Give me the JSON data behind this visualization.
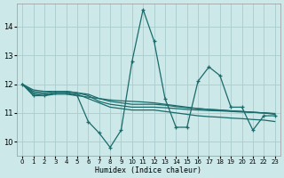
{
  "xlabel": "Humidex (Indice chaleur)",
  "background_color": "#cce8e8",
  "grid_color": "#aacccc",
  "line_color": "#1a6b6b",
  "xlim": [
    -0.5,
    23.5
  ],
  "ylim": [
    9.5,
    14.8
  ],
  "yticks": [
    10,
    11,
    12,
    13,
    14
  ],
  "xticks": [
    0,
    1,
    2,
    3,
    4,
    5,
    6,
    7,
    8,
    9,
    10,
    11,
    12,
    13,
    14,
    15,
    16,
    17,
    18,
    19,
    20,
    21,
    22,
    23
  ],
  "series_markers": [
    [
      12.0,
      11.6,
      11.6,
      11.7,
      11.7,
      11.6,
      10.7,
      10.3,
      9.8,
      10.4,
      12.8,
      14.6,
      13.5,
      11.5,
      10.5,
      10.5,
      12.1,
      12.6,
      12.3,
      11.2,
      11.2,
      10.4,
      10.9,
      10.9
    ]
  ],
  "series_lines": [
    [
      12.0,
      11.65,
      11.6,
      11.65,
      11.65,
      11.6,
      11.55,
      11.5,
      11.45,
      11.42,
      11.4,
      11.38,
      11.35,
      11.3,
      11.25,
      11.2,
      11.15,
      11.12,
      11.1,
      11.07,
      11.05,
      11.02,
      11.0,
      10.95
    ],
    [
      12.0,
      11.7,
      11.65,
      11.7,
      11.7,
      11.65,
      11.5,
      11.35,
      11.2,
      11.15,
      11.1,
      11.1,
      11.1,
      11.05,
      11.0,
      10.95,
      10.9,
      10.87,
      10.85,
      10.82,
      10.8,
      10.77,
      10.75,
      10.7
    ],
    [
      12.0,
      11.75,
      11.7,
      11.75,
      11.75,
      11.7,
      11.6,
      11.4,
      11.3,
      11.25,
      11.2,
      11.2,
      11.2,
      11.18,
      11.15,
      11.12,
      11.1,
      11.08,
      11.07,
      11.05,
      11.03,
      11.02,
      11.0,
      10.98
    ],
    [
      12.0,
      11.8,
      11.75,
      11.75,
      11.75,
      11.7,
      11.65,
      11.5,
      11.4,
      11.35,
      11.3,
      11.3,
      11.3,
      11.27,
      11.22,
      11.18,
      11.15,
      11.12,
      11.1,
      11.07,
      11.05,
      11.02,
      11.0,
      10.97
    ]
  ]
}
